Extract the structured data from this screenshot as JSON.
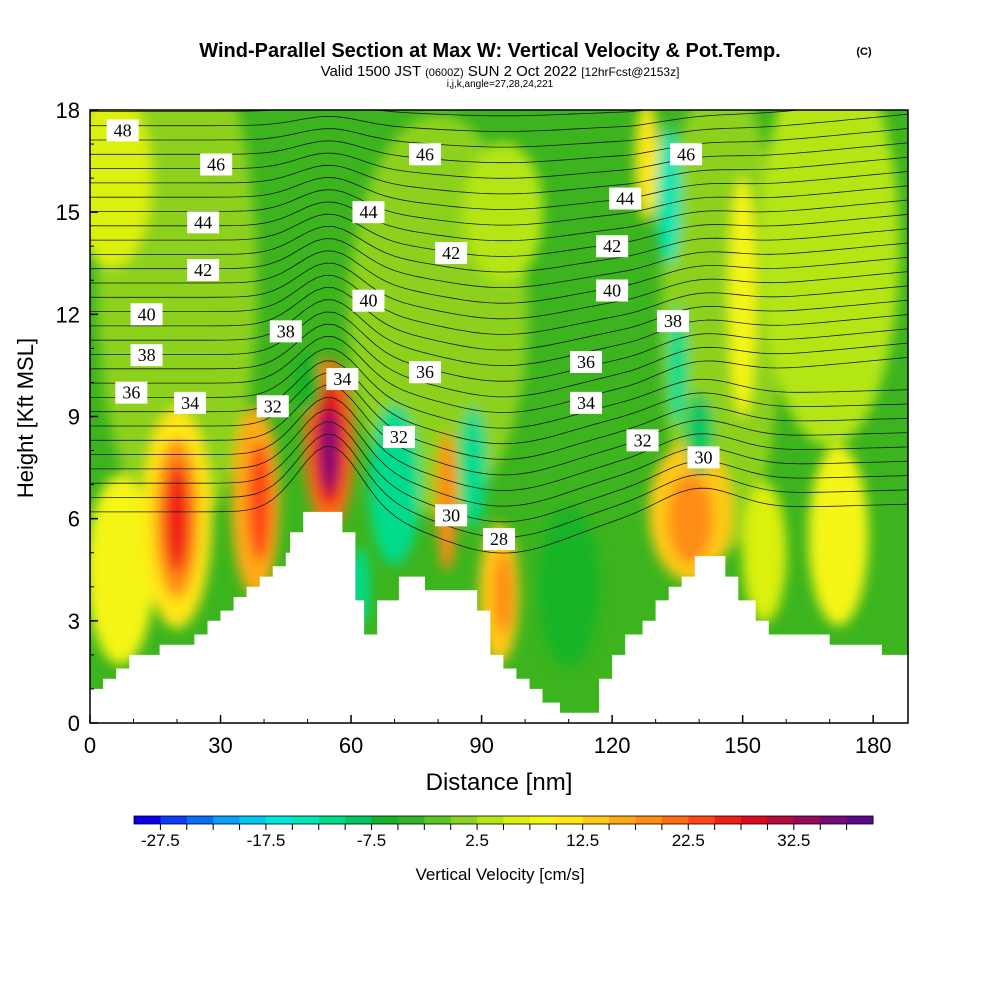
{
  "header": {
    "title": "Wind-Parallel Section at Max W: Vertical Velocity & Pot.Temp.",
    "copyright": "(C)",
    "valid_prefix": "Valid 1500 JST",
    "valid_utc": "(0600Z)",
    "valid_date": "SUN 2 Oct 2022",
    "forecast": "[12hrFcst@2153z]",
    "indices": "i,j,k,angle=27,28,24,221"
  },
  "chart_data": {
    "type": "heatmap",
    "xlabel": "Distance [nm]",
    "ylabel": "Height [Kft MSL]",
    "xlim": [
      0,
      188
    ],
    "ylim": [
      0,
      18
    ],
    "x_ticks": [
      0,
      30,
      60,
      90,
      120,
      150,
      180
    ],
    "x_tick_labels": [
      "0",
      "30",
      "60",
      "90",
      "120",
      "150",
      "180"
    ],
    "y_ticks": [
      0,
      3,
      6,
      9,
      12,
      15,
      18
    ],
    "y_tick_labels": [
      "0",
      "3",
      "6",
      "9",
      "12",
      "15",
      "18"
    ],
    "colorbar": {
      "label": "Vertical Velocity [cm/s]",
      "levels": [
        -30,
        -27.5,
        -25,
        -22.5,
        -20,
        -17.5,
        -15,
        -12.5,
        -10,
        -7.5,
        -5,
        -2.5,
        0,
        2.5,
        5,
        7.5,
        10,
        12.5,
        15,
        17.5,
        20,
        22.5,
        25,
        27.5,
        30,
        32.5,
        35,
        37.5,
        40
      ],
      "tick_values": [
        -27.5,
        -17.5,
        -7.5,
        2.5,
        12.5,
        22.5,
        32.5
      ],
      "tick_labels": [
        "-27.5",
        "-17.5",
        "-7.5",
        "2.5",
        "12.5",
        "22.5",
        "32.5"
      ],
      "colors": [
        "#0a00e8",
        "#0a3cf5",
        "#0a6ef5",
        "#0aa0f5",
        "#00c8ee",
        "#00e6d8",
        "#00e6b4",
        "#00dc8c",
        "#00c864",
        "#14b428",
        "#32b428",
        "#5ac81e",
        "#8cd21e",
        "#b4e614",
        "#dcf00a",
        "#f5f514",
        "#ffe614",
        "#ffc814",
        "#ffaa14",
        "#ff8c14",
        "#ff6e14",
        "#ff4614",
        "#f01e14",
        "#dc0a1e",
        "#b40a3c",
        "#960a5a",
        "#780a78",
        "#5a0a8c"
      ]
    },
    "theta_contour_labels": [
      {
        "label": "48",
        "x": 7.5,
        "y": 17.4
      },
      {
        "label": "46",
        "x": 29,
        "y": 16.4
      },
      {
        "label": "46",
        "x": 77,
        "y": 16.7
      },
      {
        "label": "46",
        "x": 137,
        "y": 16.7
      },
      {
        "label": "44",
        "x": 26,
        "y": 14.7
      },
      {
        "label": "44",
        "x": 64,
        "y": 15.0
      },
      {
        "label": "44",
        "x": 123,
        "y": 15.4
      },
      {
        "label": "42",
        "x": 26,
        "y": 13.3
      },
      {
        "label": "42",
        "x": 83,
        "y": 13.8
      },
      {
        "label": "42",
        "x": 120,
        "y": 14.0
      },
      {
        "label": "40",
        "x": 13,
        "y": 12.0
      },
      {
        "label": "40",
        "x": 64,
        "y": 12.4
      },
      {
        "label": "40",
        "x": 120,
        "y": 12.7
      },
      {
        "label": "38",
        "x": 13,
        "y": 10.8
      },
      {
        "label": "38",
        "x": 45,
        "y": 11.5
      },
      {
        "label": "38",
        "x": 134,
        "y": 11.8
      },
      {
        "label": "36",
        "x": 9.5,
        "y": 9.7
      },
      {
        "label": "36",
        "x": 77,
        "y": 10.3
      },
      {
        "label": "36",
        "x": 114,
        "y": 10.6
      },
      {
        "label": "34",
        "x": 23,
        "y": 9.4
      },
      {
        "label": "34",
        "x": 58,
        "y": 10.1
      },
      {
        "label": "34",
        "x": 114,
        "y": 9.4
      },
      {
        "label": "32",
        "x": 42,
        "y": 9.3
      },
      {
        "label": "32",
        "x": 71,
        "y": 8.4
      },
      {
        "label": "32",
        "x": 127,
        "y": 8.3
      },
      {
        "label": "30",
        "x": 141,
        "y": 7.8
      },
      {
        "label": "30",
        "x": 83,
        "y": 6.1
      },
      {
        "label": "28",
        "x": 94,
        "y": 5.4
      }
    ],
    "terrain_profile": [
      [
        0,
        1.0
      ],
      [
        3,
        1.0
      ],
      [
        3,
        1.3
      ],
      [
        6,
        1.3
      ],
      [
        6,
        1.6
      ],
      [
        9,
        1.6
      ],
      [
        9,
        2.0
      ],
      [
        16,
        2.0
      ],
      [
        16,
        2.3
      ],
      [
        24,
        2.3
      ],
      [
        24,
        2.6
      ],
      [
        27,
        2.6
      ],
      [
        27,
        3.0
      ],
      [
        30,
        3.0
      ],
      [
        30,
        3.3
      ],
      [
        33,
        3.3
      ],
      [
        33,
        3.7
      ],
      [
        36,
        3.7
      ],
      [
        36,
        4.0
      ],
      [
        39,
        4.0
      ],
      [
        39,
        4.3
      ],
      [
        42,
        4.3
      ],
      [
        42,
        4.6
      ],
      [
        45,
        4.6
      ],
      [
        45,
        5.0
      ],
      [
        46,
        5.0
      ],
      [
        46,
        5.6
      ],
      [
        49,
        5.6
      ],
      [
        49,
        6.2
      ],
      [
        58,
        6.2
      ],
      [
        58,
        5.6
      ],
      [
        61,
        5.6
      ],
      [
        61,
        3.6
      ],
      [
        63,
        3.6
      ],
      [
        63,
        2.6
      ],
      [
        66,
        2.6
      ],
      [
        66,
        3.6
      ],
      [
        71,
        3.6
      ],
      [
        71,
        4.3
      ],
      [
        77,
        4.3
      ],
      [
        77,
        3.9
      ],
      [
        89,
        3.9
      ],
      [
        89,
        3.3
      ],
      [
        92,
        3.3
      ],
      [
        92,
        2.0
      ],
      [
        95,
        2.0
      ],
      [
        95,
        1.6
      ],
      [
        98,
        1.6
      ],
      [
        98,
        1.3
      ],
      [
        101,
        1.3
      ],
      [
        101,
        1.0
      ],
      [
        104,
        1.0
      ],
      [
        104,
        0.6
      ],
      [
        108,
        0.6
      ],
      [
        108,
        0.3
      ],
      [
        117,
        0.3
      ],
      [
        117,
        1.3
      ],
      [
        120,
        1.3
      ],
      [
        120,
        2.0
      ],
      [
        123,
        2.0
      ],
      [
        123,
        2.6
      ],
      [
        127,
        2.6
      ],
      [
        127,
        3.0
      ],
      [
        130,
        3.0
      ],
      [
        130,
        3.6
      ],
      [
        133,
        3.6
      ],
      [
        133,
        4.0
      ],
      [
        136,
        4.0
      ],
      [
        136,
        4.3
      ],
      [
        139,
        4.3
      ],
      [
        139,
        4.9
      ],
      [
        146,
        4.9
      ],
      [
        146,
        4.3
      ],
      [
        149,
        4.3
      ],
      [
        149,
        3.6
      ],
      [
        153,
        3.6
      ],
      [
        153,
        3.0
      ],
      [
        156,
        3.0
      ],
      [
        156,
        2.6
      ],
      [
        170,
        2.6
      ],
      [
        170,
        2.3
      ],
      [
        182,
        2.3
      ],
      [
        182,
        2.0
      ],
      [
        188,
        2.0
      ]
    ]
  }
}
